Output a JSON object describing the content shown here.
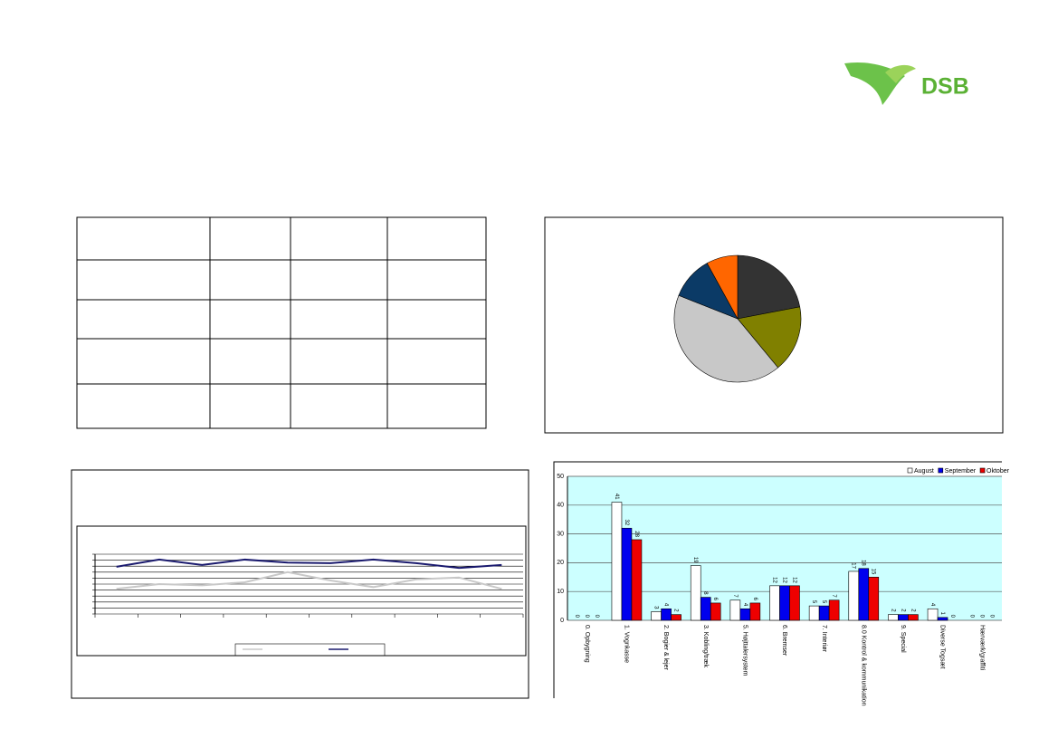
{
  "logo": "DSB",
  "chart_data": [
    {
      "type": "pie",
      "values": [
        22,
        17,
        42,
        11,
        8
      ],
      "colors": [
        "#333333",
        "#808000",
        "#c8c8c8",
        "#0b3a66",
        "#ff6600"
      ]
    },
    {
      "type": "line",
      "categories": [
        null,
        null,
        null,
        null,
        null,
        null,
        null,
        null,
        null,
        null
      ],
      "ylim": [
        0,
        10
      ],
      "yticks": [
        0,
        1,
        2,
        3,
        4,
        5,
        6,
        7,
        8,
        9,
        10
      ],
      "grid": true,
      "series": [
        {
          "color": "#c8c8c8",
          "values": [
            4.2,
            5.0,
            4.8,
            5.3,
            7.0,
            5.6,
            4.5,
            5.8,
            6.1,
            4.2
          ]
        },
        {
          "color": "#1a1a6e",
          "values": [
            7.9,
            9.1,
            8.2,
            9.1,
            8.6,
            8.5,
            9.1,
            8.5,
            7.7,
            8.2
          ]
        }
      ]
    },
    {
      "type": "bar",
      "categories": [
        "0. Opbygning",
        "1. Vognkasse",
        "2. Bogier & lejer",
        "3. Kobling/træk",
        "5. Højttalersystem",
        "6. Bremser",
        "7. Interiør",
        "8.0 Kontrol & kommunikation",
        "9. Special",
        "Diverse Togsæt",
        "Hærværk/graffiti"
      ],
      "ylim": [
        0,
        50
      ],
      "yticks": [
        0,
        10,
        20,
        30,
        40,
        50
      ],
      "grid": true,
      "legend": "top-right",
      "series": [
        {
          "name": "August",
          "color": "#ffffff",
          "values": [
            0,
            41,
            3,
            19,
            7,
            12,
            5,
            17,
            2,
            4,
            0
          ]
        },
        {
          "name": "September",
          "color": "#0000ee",
          "values": [
            0,
            32,
            4,
            8,
            4,
            12,
            5,
            18,
            2,
            1,
            0
          ]
        },
        {
          "name": "Oktober",
          "color": "#ee0000",
          "values": [
            0,
            28,
            2,
            6,
            6,
            12,
            7,
            15,
            2,
            0,
            0
          ]
        }
      ]
    }
  ]
}
